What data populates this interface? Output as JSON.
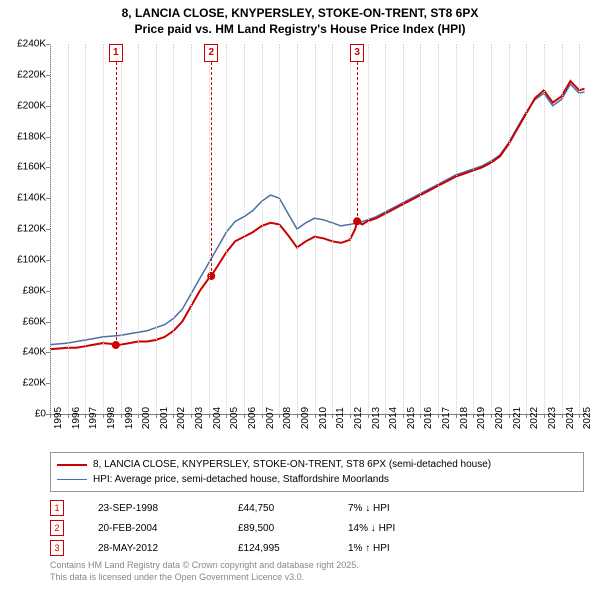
{
  "title_line1": "8, LANCIA CLOSE, KNYPERSLEY, STOKE-ON-TRENT, ST8 6PX",
  "title_line2": "Price paid vs. HM Land Registry's House Price Index (HPI)",
  "chart": {
    "type": "line",
    "background_color": "#ffffff",
    "grid_color": "#d0d0d0",
    "axis_color": "#808080",
    "xlim": [
      1995,
      2025.5
    ],
    "ylim": [
      0,
      240000
    ],
    "ytick_step": 20000,
    "yticks": [
      {
        "v": 0,
        "label": "£0"
      },
      {
        "v": 20000,
        "label": "£20K"
      },
      {
        "v": 40000,
        "label": "£40K"
      },
      {
        "v": 60000,
        "label": "£60K"
      },
      {
        "v": 80000,
        "label": "£80K"
      },
      {
        "v": 100000,
        "label": "£100K"
      },
      {
        "v": 120000,
        "label": "£120K"
      },
      {
        "v": 140000,
        "label": "£140K"
      },
      {
        "v": 160000,
        "label": "£160K"
      },
      {
        "v": 180000,
        "label": "£180K"
      },
      {
        "v": 200000,
        "label": "£200K"
      },
      {
        "v": 220000,
        "label": "£220K"
      },
      {
        "v": 240000,
        "label": "£240K"
      }
    ],
    "xticks": [
      1995,
      1996,
      1997,
      1998,
      1999,
      2000,
      2001,
      2002,
      2003,
      2004,
      2005,
      2006,
      2007,
      2008,
      2009,
      2010,
      2011,
      2012,
      2013,
      2014,
      2015,
      2016,
      2017,
      2018,
      2019,
      2020,
      2021,
      2022,
      2023,
      2024,
      2025
    ],
    "series": [
      {
        "name": "property",
        "label": "8, LANCIA CLOSE, KNYPERSLEY, STOKE-ON-TRENT, ST8 6PX (semi-detached house)",
        "color": "#cc0000",
        "line_width": 2,
        "data": [
          [
            1995,
            42000
          ],
          [
            1995.5,
            42500
          ],
          [
            1996,
            43000
          ],
          [
            1996.5,
            43000
          ],
          [
            1997,
            44000
          ],
          [
            1997.5,
            45000
          ],
          [
            1998,
            46000
          ],
          [
            1998.5,
            45500
          ],
          [
            1998.73,
            44750
          ],
          [
            1999,
            45000
          ],
          [
            1999.5,
            46000
          ],
          [
            2000,
            47000
          ],
          [
            2000.5,
            47000
          ],
          [
            2001,
            48000
          ],
          [
            2001.5,
            50000
          ],
          [
            2002,
            54000
          ],
          [
            2002.5,
            60000
          ],
          [
            2003,
            70000
          ],
          [
            2003.5,
            80000
          ],
          [
            2004,
            88000
          ],
          [
            2004.14,
            89500
          ],
          [
            2004.5,
            96000
          ],
          [
            2005,
            105000
          ],
          [
            2005.5,
            112000
          ],
          [
            2006,
            115000
          ],
          [
            2006.5,
            118000
          ],
          [
            2007,
            122000
          ],
          [
            2007.5,
            124000
          ],
          [
            2008,
            123000
          ],
          [
            2008.5,
            116000
          ],
          [
            2009,
            108000
          ],
          [
            2009.5,
            112000
          ],
          [
            2010,
            115000
          ],
          [
            2010.5,
            114000
          ],
          [
            2011,
            112000
          ],
          [
            2011.5,
            111000
          ],
          [
            2012,
            113000
          ],
          [
            2012.3,
            120000
          ],
          [
            2012.41,
            124995
          ],
          [
            2012.7,
            123000
          ],
          [
            2013,
            125000
          ],
          [
            2013.5,
            127000
          ],
          [
            2014,
            130000
          ],
          [
            2014.5,
            133000
          ],
          [
            2015,
            136000
          ],
          [
            2015.5,
            139000
          ],
          [
            2016,
            142000
          ],
          [
            2016.5,
            145000
          ],
          [
            2017,
            148000
          ],
          [
            2017.5,
            151000
          ],
          [
            2018,
            154000
          ],
          [
            2018.5,
            156000
          ],
          [
            2019,
            158000
          ],
          [
            2019.5,
            160000
          ],
          [
            2020,
            163000
          ],
          [
            2020.5,
            167000
          ],
          [
            2021,
            175000
          ],
          [
            2021.5,
            185000
          ],
          [
            2022,
            195000
          ],
          [
            2022.5,
            205000
          ],
          [
            2023,
            210000
          ],
          [
            2023.5,
            202000
          ],
          [
            2024,
            206000
          ],
          [
            2024.5,
            216000
          ],
          [
            2025,
            210000
          ],
          [
            2025.3,
            211000
          ]
        ]
      },
      {
        "name": "hpi",
        "label": "HPI: Average price, semi-detached house, Staffordshire Moorlands",
        "color": "#4a6fa5",
        "line_width": 1.5,
        "data": [
          [
            1995,
            45000
          ],
          [
            1995.5,
            45500
          ],
          [
            1996,
            46000
          ],
          [
            1996.5,
            47000
          ],
          [
            1997,
            48000
          ],
          [
            1997.5,
            49000
          ],
          [
            1998,
            50000
          ],
          [
            1998.5,
            50500
          ],
          [
            1999,
            51000
          ],
          [
            1999.5,
            52000
          ],
          [
            2000,
            53000
          ],
          [
            2000.5,
            54000
          ],
          [
            2001,
            56000
          ],
          [
            2001.5,
            58000
          ],
          [
            2002,
            62000
          ],
          [
            2002.5,
            68000
          ],
          [
            2003,
            78000
          ],
          [
            2003.5,
            88000
          ],
          [
            2004,
            98000
          ],
          [
            2004.5,
            108000
          ],
          [
            2005,
            118000
          ],
          [
            2005.5,
            125000
          ],
          [
            2006,
            128000
          ],
          [
            2006.5,
            132000
          ],
          [
            2007,
            138000
          ],
          [
            2007.5,
            142000
          ],
          [
            2008,
            140000
          ],
          [
            2008.5,
            130000
          ],
          [
            2009,
            120000
          ],
          [
            2009.5,
            124000
          ],
          [
            2010,
            127000
          ],
          [
            2010.5,
            126000
          ],
          [
            2011,
            124000
          ],
          [
            2011.5,
            122000
          ],
          [
            2012,
            123000
          ],
          [
            2012.5,
            124000
          ],
          [
            2013,
            126000
          ],
          [
            2013.5,
            128000
          ],
          [
            2014,
            131000
          ],
          [
            2014.5,
            134000
          ],
          [
            2015,
            137000
          ],
          [
            2015.5,
            140000
          ],
          [
            2016,
            143000
          ],
          [
            2016.5,
            146000
          ],
          [
            2017,
            149000
          ],
          [
            2017.5,
            152000
          ],
          [
            2018,
            155000
          ],
          [
            2018.5,
            157000
          ],
          [
            2019,
            159000
          ],
          [
            2019.5,
            161000
          ],
          [
            2020,
            164000
          ],
          [
            2020.5,
            168000
          ],
          [
            2021,
            176000
          ],
          [
            2021.5,
            186000
          ],
          [
            2022,
            196000
          ],
          [
            2022.5,
            204000
          ],
          [
            2023,
            208000
          ],
          [
            2023.5,
            200000
          ],
          [
            2024,
            204000
          ],
          [
            2024.5,
            214000
          ],
          [
            2025,
            208000
          ],
          [
            2025.3,
            209000
          ]
        ]
      }
    ],
    "sale_markers": [
      {
        "n": "1",
        "x": 1998.73,
        "y": 44750
      },
      {
        "n": "2",
        "x": 2004.14,
        "y": 89500
      },
      {
        "n": "3",
        "x": 2012.41,
        "y": 124995
      }
    ]
  },
  "legend": {
    "items": [
      {
        "color": "#cc0000",
        "width": 2,
        "text_key": "chart.series.0.label"
      },
      {
        "color": "#4a6fa5",
        "width": 1.5,
        "text_key": "chart.series.1.label"
      }
    ]
  },
  "sales_table": [
    {
      "n": "1",
      "date": "23-SEP-1998",
      "price": "£44,750",
      "pct": "7% ↓ HPI"
    },
    {
      "n": "2",
      "date": "20-FEB-2004",
      "price": "£89,500",
      "pct": "14% ↓ HPI"
    },
    {
      "n": "3",
      "date": "28-MAY-2012",
      "price": "£124,995",
      "pct": "1% ↑ HPI"
    }
  ],
  "attribution_line1": "Contains HM Land Registry data © Crown copyright and database right 2025.",
  "attribution_line2": "This data is licensed under the Open Government Licence v3.0."
}
